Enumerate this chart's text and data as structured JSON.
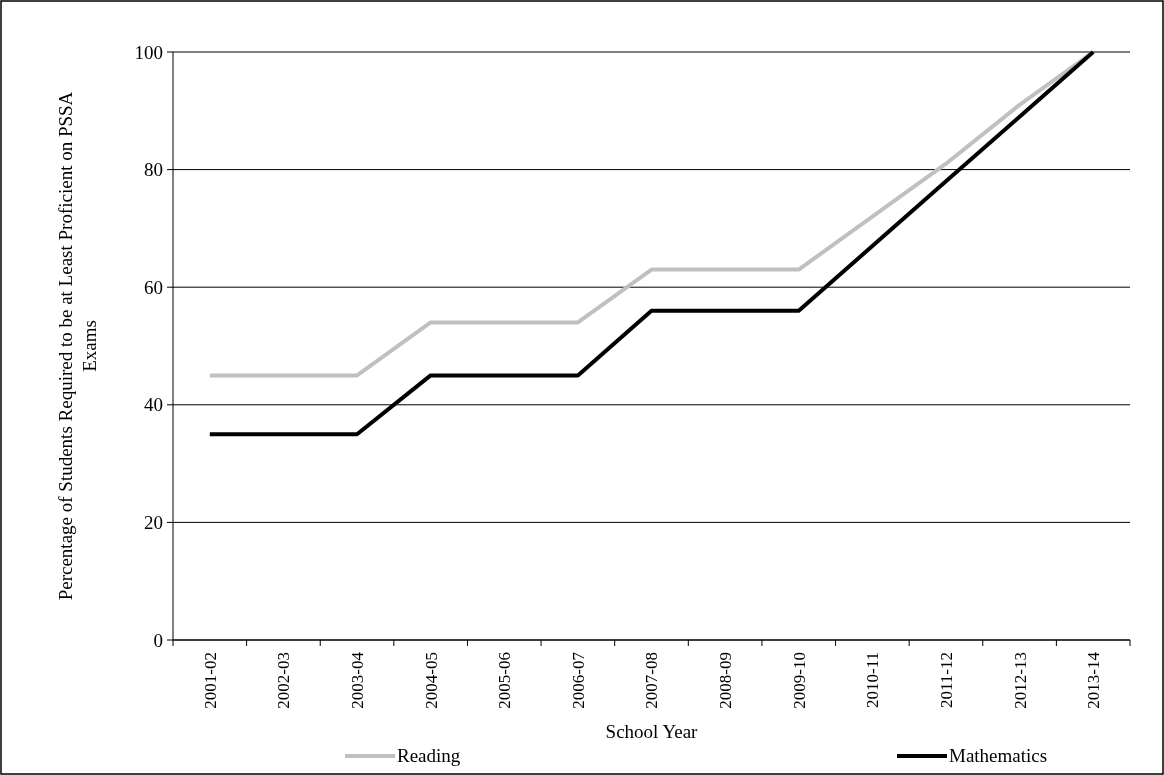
{
  "chart_data": {
    "type": "line",
    "xlabel": "School Year",
    "ylabel": "Percentage of Students Required to be at Least Proficient on PSSA Exams",
    "categories": [
      "2001-02",
      "2002-03",
      "2003-04",
      "2004-05",
      "2005-06",
      "2006-07",
      "2007-08",
      "2008-09",
      "2009-10",
      "2010-11",
      "2011-12",
      "2012-13",
      "2013-14"
    ],
    "series": [
      {
        "name": "Reading",
        "color": "#c0c0c0",
        "values": [
          45,
          45,
          45,
          54,
          54,
          54,
          63,
          63,
          63,
          72,
          81,
          91,
          100
        ]
      },
      {
        "name": "Mathematics",
        "color": "#000000",
        "values": [
          35,
          35,
          35,
          45,
          45,
          45,
          56,
          56,
          56,
          67,
          78,
          89,
          100
        ]
      }
    ],
    "ylim": [
      0,
      100
    ],
    "yticks": [
      0,
      20,
      40,
      60,
      80,
      100
    ],
    "grid": "y",
    "legend": "bottom",
    "marker": "none",
    "line_style": "solid"
  }
}
